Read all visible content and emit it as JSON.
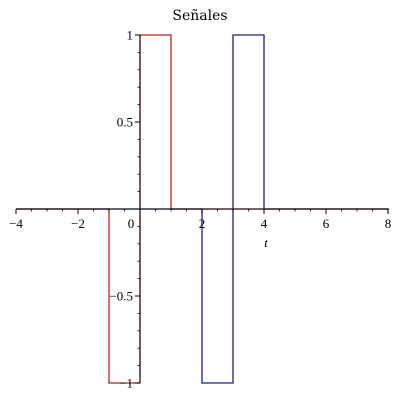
{
  "chart_data": {
    "type": "line",
    "title": "Señales",
    "xlabel": "t",
    "ylabel": "",
    "xlim": [
      -4,
      8
    ],
    "ylim": [
      -1,
      1
    ],
    "x_ticks": [
      -4,
      -2,
      0,
      2,
      4,
      6,
      8
    ],
    "x_tick_labels": [
      "−4",
      "−2",
      "0",
      "2",
      "4",
      "6",
      "8"
    ],
    "y_ticks": [
      -1,
      -0.5,
      0.5,
      1
    ],
    "y_tick_labels": [
      "−1",
      "−0.5",
      "0.5",
      "1"
    ],
    "grid": false,
    "series": [
      {
        "color": "#b22222",
        "points": [
          [
            -4,
            0
          ],
          [
            -1,
            0
          ],
          [
            -1,
            -1
          ],
          [
            0,
            -1
          ],
          [
            0,
            1
          ],
          [
            1,
            1
          ],
          [
            1,
            0
          ],
          [
            8,
            0
          ]
        ]
      },
      {
        "color": "#1a237e",
        "points": [
          [
            -4,
            0
          ],
          [
            2,
            0
          ],
          [
            2,
            -1
          ],
          [
            3,
            -1
          ],
          [
            3,
            1
          ],
          [
            4,
            1
          ],
          [
            4,
            0
          ],
          [
            8,
            0
          ]
        ]
      }
    ]
  }
}
